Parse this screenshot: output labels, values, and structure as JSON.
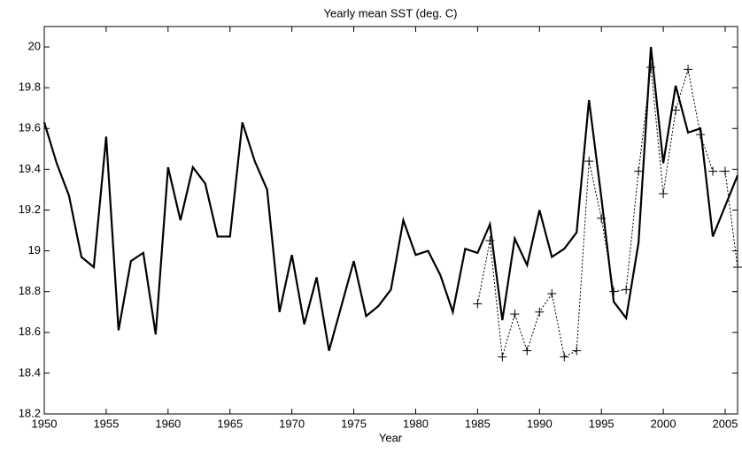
{
  "chart_data": {
    "type": "line",
    "title": "Yearly mean SST (deg. C)",
    "x_label": "Year",
    "x": [
      1950,
      1951,
      1952,
      1953,
      1954,
      1955,
      1956,
      1957,
      1958,
      1959,
      1960,
      1961,
      1962,
      1963,
      1964,
      1965,
      1966,
      1967,
      1968,
      1969,
      1970,
      1971,
      1972,
      1973,
      1974,
      1975,
      1976,
      1977,
      1978,
      1979,
      1980,
      1981,
      1982,
      1983,
      1984,
      1985,
      1986,
      1987,
      1988,
      1989,
      1990,
      1991,
      1992,
      1993,
      1994,
      1995,
      1996,
      1997,
      1998,
      1999,
      2000,
      2001,
      2002,
      2003,
      2004,
      2005,
      2006
    ],
    "series": [
      {
        "color": "#000000",
        "line_style": "solid",
        "marker": "none",
        "values": [
          19.63,
          19.43,
          19.27,
          18.97,
          18.92,
          19.56,
          18.61,
          18.95,
          18.99,
          18.59,
          19.41,
          19.15,
          19.41,
          19.33,
          19.07,
          19.07,
          19.63,
          19.44,
          19.3,
          18.7,
          18.98,
          18.64,
          18.87,
          18.51,
          18.73,
          18.95,
          18.68,
          18.73,
          18.81,
          19.15,
          18.98,
          19.0,
          18.88,
          18.7,
          19.01,
          18.99,
          19.13,
          18.66,
          19.06,
          18.93,
          19.2,
          18.97,
          19.01,
          19.09,
          19.74,
          19.26,
          18.75,
          18.67,
          19.04,
          20.0,
          19.43,
          19.81,
          19.58,
          19.6,
          19.07,
          19.22,
          19.37
        ]
      },
      {
        "color": "#000000",
        "line_style": "dashed",
        "marker": "plus",
        "values": [
          null,
          null,
          null,
          null,
          null,
          null,
          null,
          null,
          null,
          null,
          null,
          null,
          null,
          null,
          null,
          null,
          null,
          null,
          null,
          null,
          null,
          null,
          null,
          null,
          null,
          null,
          null,
          null,
          null,
          null,
          null,
          null,
          null,
          null,
          null,
          18.74,
          19.05,
          18.48,
          18.69,
          18.51,
          18.7,
          18.79,
          18.48,
          18.51,
          19.44,
          19.16,
          18.8,
          18.81,
          19.39,
          19.9,
          19.28,
          19.69,
          19.89,
          19.57,
          19.39,
          19.39,
          18.92
        ]
      }
    ],
    "xlim": [
      1950,
      2006
    ],
    "xticks": [
      1950,
      1955,
      1960,
      1965,
      1970,
      1975,
      1980,
      1985,
      1990,
      1995,
      2000,
      2005
    ],
    "ylim": [
      18.2,
      20.1
    ],
    "yticks": [
      18.2,
      18.4,
      18.6,
      18.8,
      19,
      19.2,
      19.4,
      19.6,
      19.8,
      20
    ],
    "grid": false
  }
}
